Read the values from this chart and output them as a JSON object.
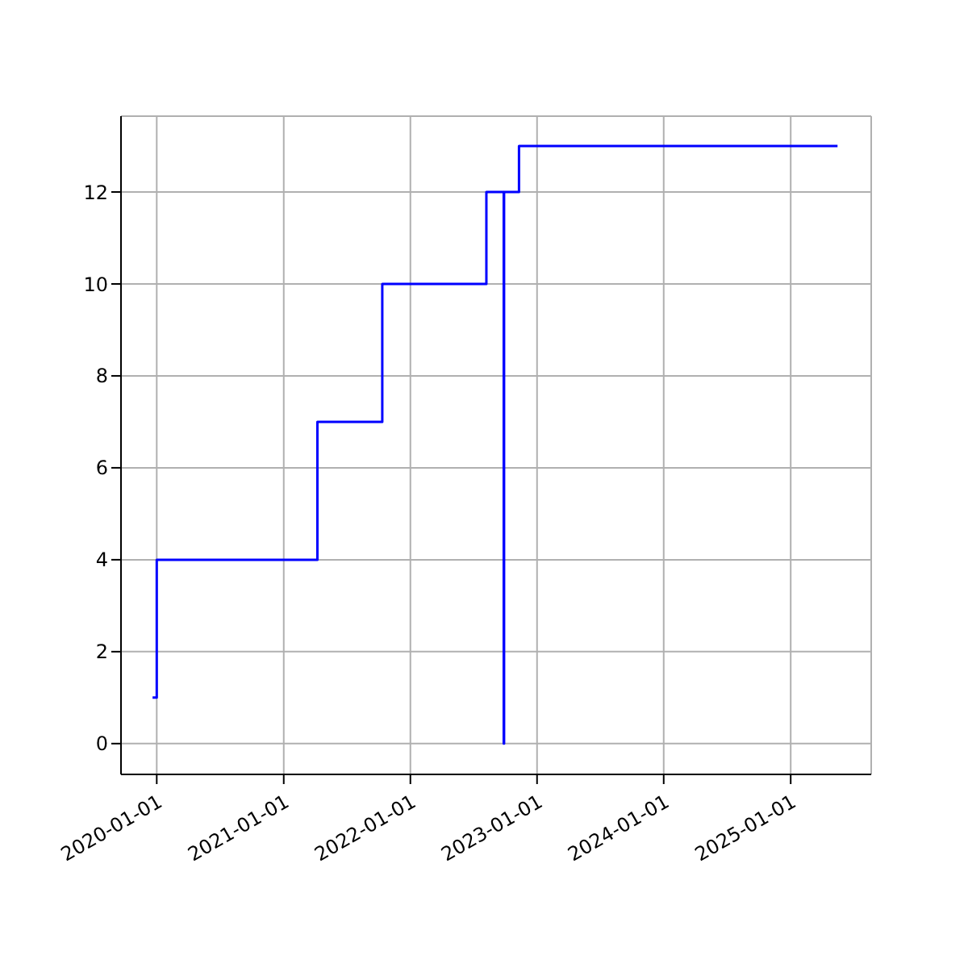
{
  "chart_data": {
    "type": "step",
    "x": [
      "2019-12-20",
      "2020-01-01",
      "2021-04-08",
      "2021-10-12",
      "2022-08-08",
      "2022-09-27",
      "2022-09-28",
      "2022-11-10",
      "2025-05-16"
    ],
    "series": [
      {
        "color": "#0000ff",
        "values": [
          1,
          4,
          7,
          10,
          12,
          0,
          12,
          13,
          13
        ]
      }
    ],
    "xlim": [
      "2019-09-20",
      "2025-08-21"
    ],
    "xticks": [
      "2020-01-01",
      "2021-01-01",
      "2022-01-01",
      "2023-01-01",
      "2024-01-01",
      "2025-01-01"
    ],
    "ylim": [
      -0.67,
      13.65
    ],
    "yticks": [
      0,
      2,
      4,
      6,
      8,
      10,
      12
    ],
    "grid": true,
    "legend": false,
    "marker": "none",
    "line_style": "solid"
  }
}
